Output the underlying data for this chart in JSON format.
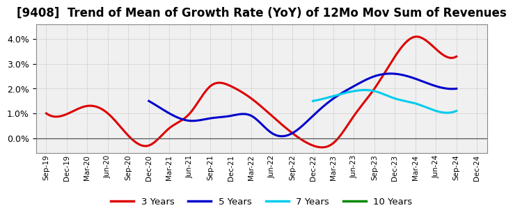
{
  "title": "[9408]  Trend of Mean of Growth Rate (YoY) of 12Mo Mov Sum of Revenues",
  "title_fontsize": 12,
  "background_color": "#ffffff",
  "plot_bg_color": "#f0f0f0",
  "grid_color": "#999999",
  "ylim": [
    -0.006,
    0.046
  ],
  "yticks": [
    0.0,
    0.01,
    0.02,
    0.03,
    0.04
  ],
  "series": {
    "3 Years": {
      "color": "#dd0000",
      "linewidth": 2.2,
      "x": [
        0,
        1,
        2,
        3,
        4,
        5,
        6,
        7,
        8,
        9,
        10,
        11,
        12,
        13,
        14,
        15,
        16,
        17,
        18,
        19,
        20
      ],
      "y": [
        0.01,
        0.0097,
        0.013,
        0.01,
        0.001,
        -0.003,
        0.004,
        0.01,
        0.021,
        0.021,
        0.016,
        0.009,
        0.002,
        -0.003,
        -0.002,
        0.009,
        0.02,
        0.033,
        0.041,
        0.036,
        0.033
      ]
    },
    "5 Years": {
      "color": "#0000cc",
      "linewidth": 2.2,
      "x": [
        5,
        6,
        7,
        8,
        9,
        10,
        11,
        12,
        13,
        14,
        15,
        16,
        17,
        18,
        19,
        20
      ],
      "y": [
        0.015,
        0.01,
        0.007,
        0.008,
        0.009,
        0.009,
        0.002,
        0.002,
        0.009,
        0.016,
        0.021,
        0.025,
        0.026,
        0.024,
        0.021,
        0.02
      ]
    },
    "7 Years": {
      "color": "#00ccee",
      "linewidth": 2.2,
      "x": [
        13,
        14,
        15,
        16,
        17,
        18,
        19,
        20
      ],
      "y": [
        0.015,
        0.017,
        0.019,
        0.019,
        0.016,
        0.014,
        0.011,
        0.011
      ]
    },
    "10 Years": {
      "color": "#008800",
      "linewidth": 2.2,
      "x": [],
      "y": []
    }
  },
  "xtick_labels": [
    "Sep-19",
    "Dec-19",
    "Mar-20",
    "Jun-20",
    "Sep-20",
    "Dec-20",
    "Mar-21",
    "Jun-21",
    "Sep-21",
    "Dec-21",
    "Mar-22",
    "Jun-22",
    "Sep-22",
    "Dec-22",
    "Mar-23",
    "Jun-23",
    "Sep-23",
    "Dec-23",
    "Mar-24",
    "Jun-24",
    "Sep-24",
    "Dec-24"
  ],
  "legend_items": [
    "3 Years",
    "5 Years",
    "7 Years",
    "10 Years"
  ],
  "legend_colors": [
    "#dd0000",
    "#0000cc",
    "#00ccee",
    "#008800"
  ]
}
